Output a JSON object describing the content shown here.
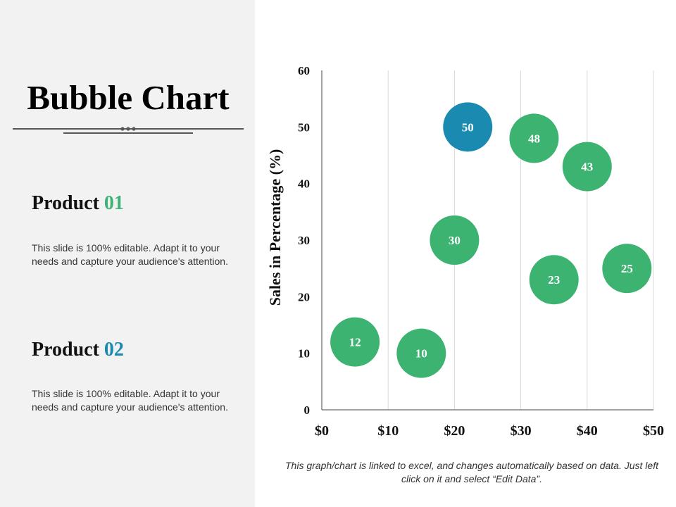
{
  "slide": {
    "title": "Bubble Chart",
    "products": [
      {
        "label": "Product",
        "number": "01",
        "number_color": "#3cb371",
        "description": "This slide is 100% editable. Adapt it to your needs and capture your audience's attention."
      },
      {
        "label": "Product",
        "number": "02",
        "number_color": "#1a8ab0",
        "description": "This slide is 100% editable. Adapt it to your needs and capture your audience's attention."
      }
    ],
    "footnote": "This graph/chart is linked to excel, and changes automatically based on data. Just left click on it and select “Edit Data”."
  },
  "colors": {
    "sidebar_bg": "#f2f2f2",
    "green": "#3cb371",
    "blue": "#1a8ab0"
  },
  "chart_data": {
    "type": "scatter",
    "title": "",
    "xlabel": "",
    "ylabel": "Sales in Percentage (%)",
    "xlim": [
      0,
      50
    ],
    "ylim": [
      0,
      60
    ],
    "x_ticks": [
      0,
      10,
      20,
      30,
      40,
      50
    ],
    "x_tick_labels": [
      "$0",
      "$10",
      "$20",
      "$30",
      "$40",
      "$50"
    ],
    "y_ticks": [
      0,
      10,
      20,
      30,
      40,
      50,
      60
    ],
    "y_tick_labels": [
      "0",
      "10",
      "20",
      "30",
      "40",
      "50",
      "60"
    ],
    "grid": "vertical",
    "bubbles": [
      {
        "x": 5,
        "y": 12,
        "label": "12",
        "color": "#3cb371"
      },
      {
        "x": 15,
        "y": 10,
        "label": "10",
        "color": "#3cb371"
      },
      {
        "x": 20,
        "y": 30,
        "label": "30",
        "color": "#3cb371"
      },
      {
        "x": 22,
        "y": 50,
        "label": "50",
        "color": "#1a8ab0"
      },
      {
        "x": 32,
        "y": 48,
        "label": "48",
        "color": "#3cb371"
      },
      {
        "x": 35,
        "y": 23,
        "label": "23",
        "color": "#3cb371"
      },
      {
        "x": 40,
        "y": 43,
        "label": "43",
        "color": "#3cb371"
      },
      {
        "x": 46,
        "y": 25,
        "label": "25",
        "color": "#3cb371"
      }
    ]
  }
}
